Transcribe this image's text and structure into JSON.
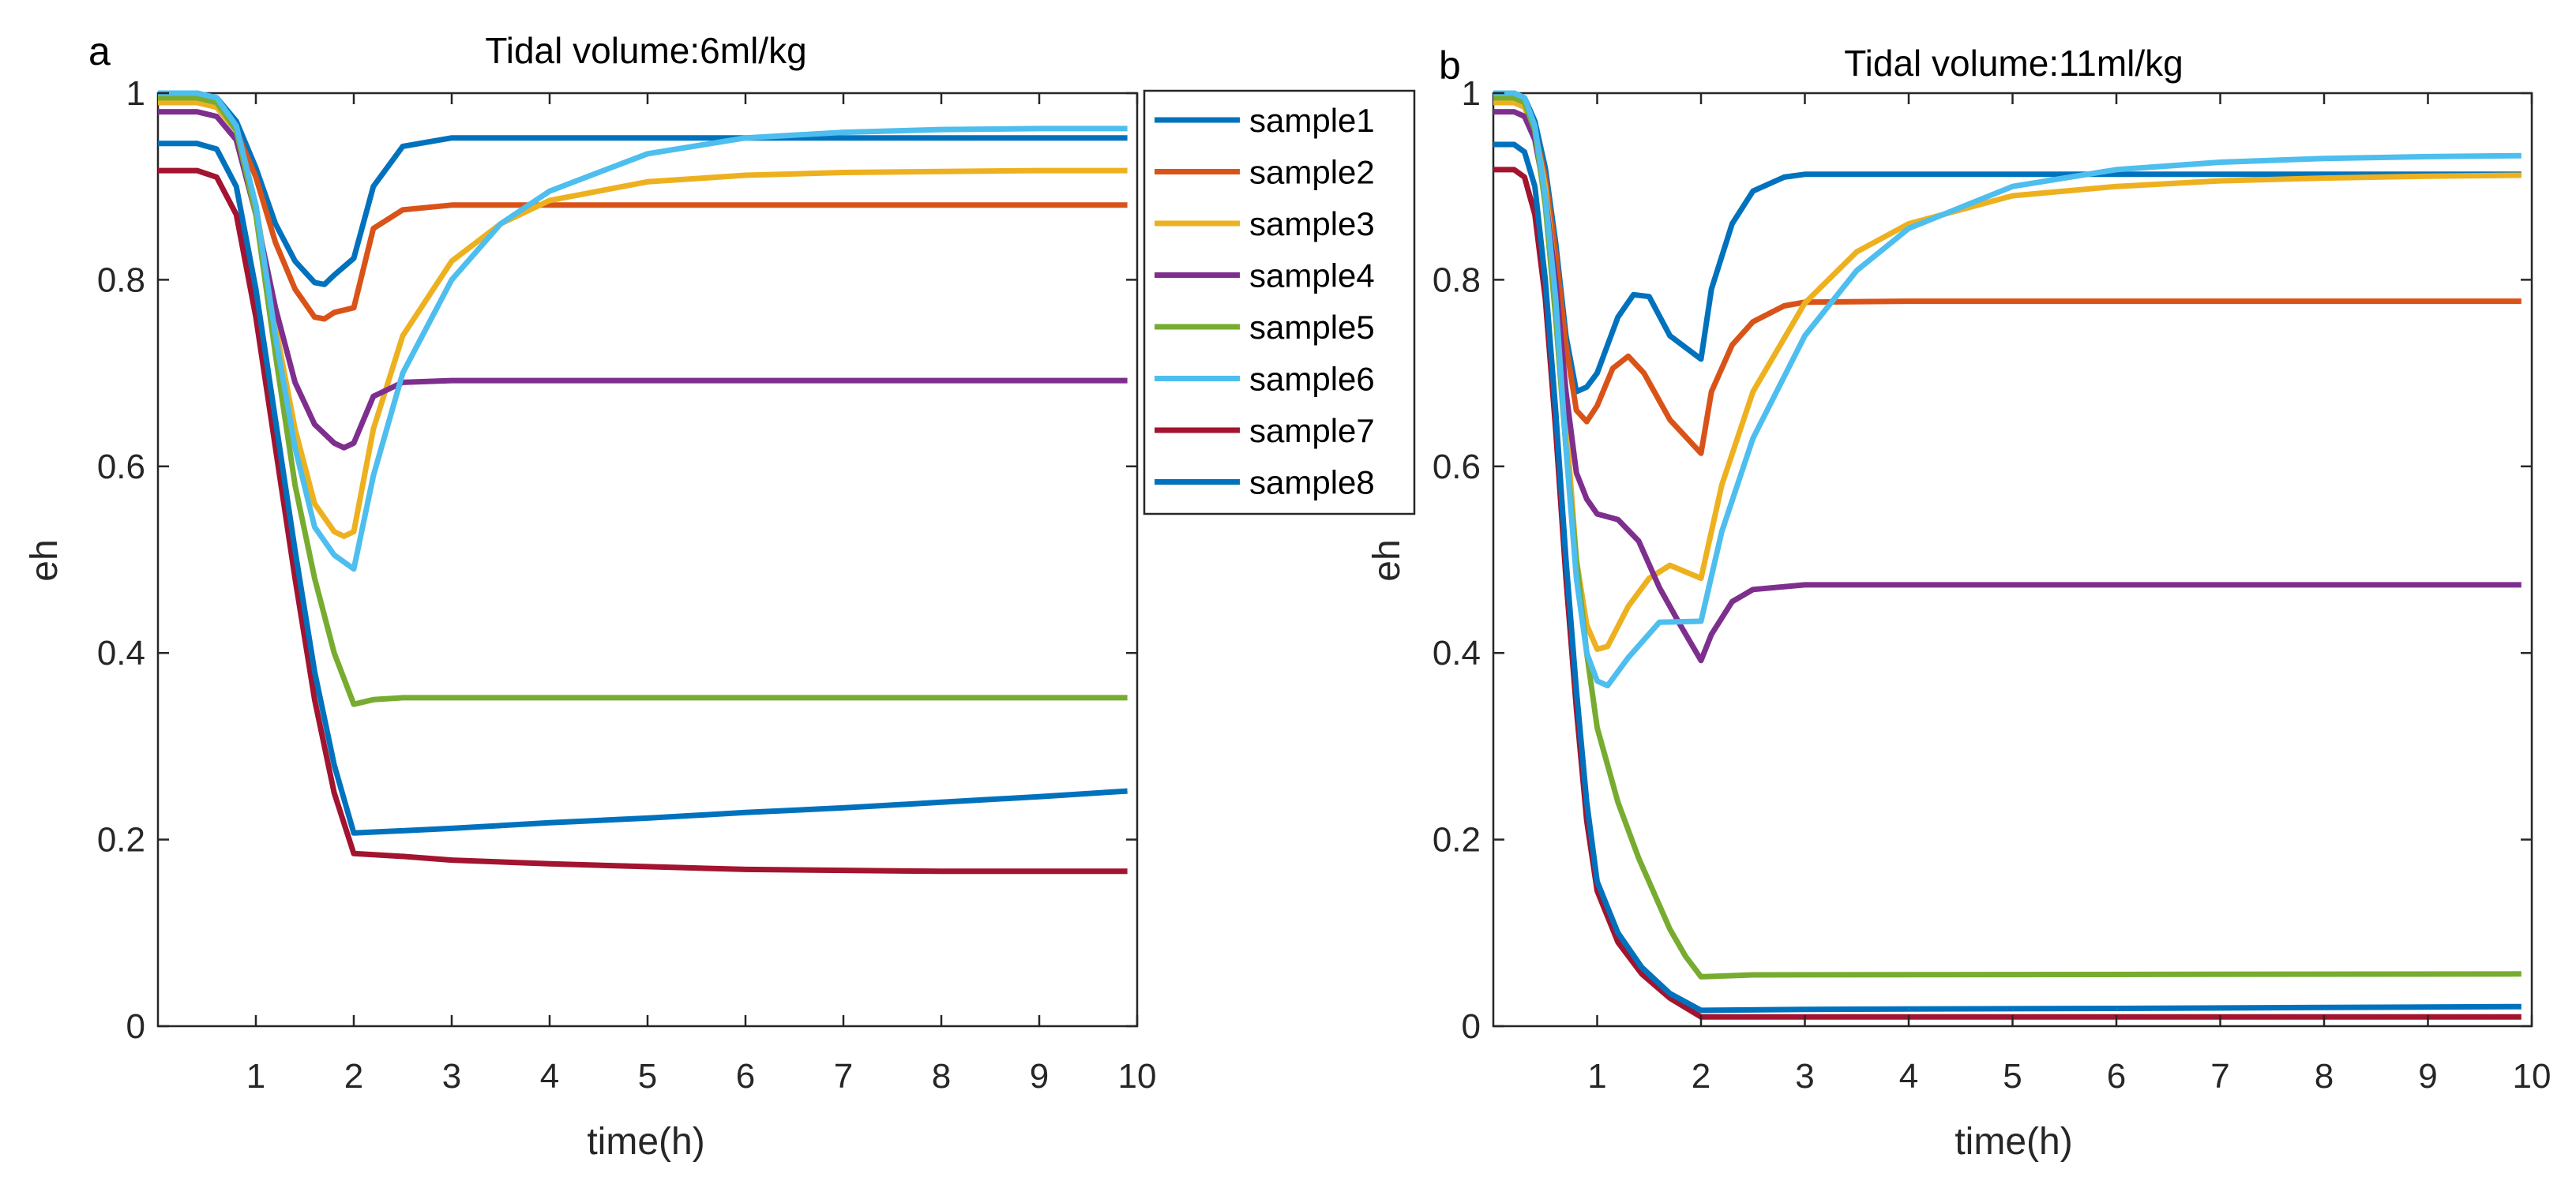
{
  "chart_data": [
    {
      "type": "line",
      "panel_label": "a",
      "title": "Tidal volume:6ml/kg",
      "xlabel": "time(h)",
      "ylabel": "eh",
      "xlim": [
        0,
        10
      ],
      "ylim": [
        0,
        1
      ],
      "xticks": [
        "1",
        "2",
        "3",
        "4",
        "5",
        "6",
        "7",
        "8",
        "9",
        "10"
      ],
      "yticks": [
        "0",
        "0.2",
        "0.4",
        "0.6",
        "0.8",
        "1"
      ],
      "grid": false,
      "series": [
        {
          "name": "sample1",
          "color": "#0072BD",
          "x": [
            0,
            0.4,
            0.6,
            0.8,
            1,
            1.2,
            1.4,
            1.6,
            1.7,
            1.8,
            2,
            2.2,
            2.5,
            3,
            4,
            6,
            8,
            9.9
          ],
          "y": [
            1,
            1,
            0.995,
            0.97,
            0.92,
            0.86,
            0.82,
            0.797,
            0.795,
            0.805,
            0.823,
            0.9,
            0.943,
            0.952,
            0.952,
            0.952,
            0.952,
            0.952
          ]
        },
        {
          "name": "sample2",
          "color": "#D95319",
          "x": [
            0,
            0.4,
            0.6,
            0.8,
            1,
            1.2,
            1.4,
            1.6,
            1.7,
            1.8,
            2,
            2.2,
            2.5,
            3,
            4,
            6,
            8,
            9.9
          ],
          "y": [
            0.99,
            0.99,
            0.985,
            0.96,
            0.91,
            0.84,
            0.79,
            0.76,
            0.758,
            0.765,
            0.77,
            0.855,
            0.875,
            0.88,
            0.88,
            0.88,
            0.88,
            0.88
          ]
        },
        {
          "name": "sample3",
          "color": "#EDB120",
          "x": [
            0,
            0.4,
            0.6,
            0.8,
            1,
            1.2,
            1.4,
            1.6,
            1.8,
            1.9,
            2,
            2.2,
            2.5,
            3,
            3.5,
            4,
            5,
            6,
            7,
            8,
            9,
            9.9
          ],
          "y": [
            0.99,
            0.99,
            0.985,
            0.96,
            0.88,
            0.75,
            0.64,
            0.56,
            0.53,
            0.525,
            0.53,
            0.64,
            0.74,
            0.82,
            0.86,
            0.885,
            0.905,
            0.912,
            0.915,
            0.916,
            0.917,
            0.917
          ]
        },
        {
          "name": "sample4",
          "color": "#7E2F8E",
          "x": [
            0,
            0.4,
            0.6,
            0.8,
            1,
            1.2,
            1.4,
            1.6,
            1.8,
            1.9,
            2,
            2.2,
            2.5,
            3,
            5,
            9.9
          ],
          "y": [
            0.98,
            0.98,
            0.975,
            0.95,
            0.87,
            0.77,
            0.69,
            0.645,
            0.625,
            0.62,
            0.625,
            0.675,
            0.69,
            0.692,
            0.692,
            0.692
          ]
        },
        {
          "name": "sample5",
          "color": "#77AC30",
          "x": [
            0,
            0.4,
            0.6,
            0.8,
            1,
            1.2,
            1.4,
            1.6,
            1.8,
            2,
            2.2,
            2.5,
            3,
            9.9
          ],
          "y": [
            0.995,
            0.995,
            0.99,
            0.96,
            0.87,
            0.72,
            0.58,
            0.48,
            0.4,
            0.345,
            0.35,
            0.352,
            0.352,
            0.352
          ]
        },
        {
          "name": "sample6",
          "color": "#4DBEEE",
          "x": [
            0,
            0.4,
            0.6,
            0.8,
            1,
            1.2,
            1.4,
            1.6,
            1.8,
            2,
            2.2,
            2.5,
            3,
            3.5,
            4,
            5,
            6,
            7,
            8,
            9,
            9.9
          ],
          "y": [
            1,
            1,
            0.995,
            0.965,
            0.88,
            0.74,
            0.62,
            0.535,
            0.505,
            0.49,
            0.59,
            0.7,
            0.8,
            0.86,
            0.895,
            0.935,
            0.952,
            0.958,
            0.961,
            0.962,
            0.962
          ]
        },
        {
          "name": "sample7",
          "color": "#A2142F",
          "x": [
            0,
            0.4,
            0.6,
            0.8,
            1,
            1.2,
            1.4,
            1.6,
            1.8,
            2,
            2.5,
            3,
            4,
            5,
            6,
            7,
            8,
            9,
            9.9
          ],
          "y": [
            0.917,
            0.917,
            0.91,
            0.87,
            0.76,
            0.62,
            0.48,
            0.35,
            0.25,
            0.185,
            0.182,
            0.178,
            0.174,
            0.171,
            0.168,
            0.167,
            0.166,
            0.166,
            0.166
          ]
        },
        {
          "name": "sample8",
          "color": "#0072BD",
          "x": [
            0,
            0.4,
            0.6,
            0.8,
            1,
            1.2,
            1.4,
            1.6,
            1.8,
            2,
            3,
            4,
            5,
            6,
            7,
            8,
            9,
            9.9
          ],
          "y": [
            0.946,
            0.946,
            0.94,
            0.9,
            0.79,
            0.65,
            0.51,
            0.38,
            0.28,
            0.207,
            0.212,
            0.218,
            0.223,
            0.229,
            0.234,
            0.24,
            0.246,
            0.252
          ]
        }
      ]
    },
    {
      "type": "line",
      "panel_label": "b",
      "title": "Tidal volume:11ml/kg",
      "xlabel": "time(h)",
      "ylabel": "eh",
      "xlim": [
        0,
        10
      ],
      "ylim": [
        0,
        1
      ],
      "xticks": [
        "1",
        "2",
        "3",
        "4",
        "5",
        "6",
        "7",
        "8",
        "9",
        "10"
      ],
      "yticks": [
        "0",
        "0.2",
        "0.4",
        "0.6",
        "0.8",
        "1"
      ],
      "grid": false,
      "series": [
        {
          "name": "sample1",
          "color": "#0072BD",
          "x": [
            0,
            0.2,
            0.3,
            0.4,
            0.5,
            0.6,
            0.7,
            0.8,
            0.9,
            1.0,
            1.2,
            1.35,
            1.5,
            1.7,
            2.0,
            2.1,
            2.3,
            2.5,
            2.8,
            3,
            4,
            6,
            8,
            9.9
          ],
          "y": [
            1,
            1,
            0.995,
            0.97,
            0.92,
            0.84,
            0.74,
            0.68,
            0.685,
            0.7,
            0.76,
            0.784,
            0.782,
            0.74,
            0.715,
            0.79,
            0.86,
            0.895,
            0.91,
            0.913,
            0.913,
            0.913,
            0.913,
            0.913
          ]
        },
        {
          "name": "sample2",
          "color": "#D95319",
          "x": [
            0,
            0.2,
            0.3,
            0.4,
            0.5,
            0.6,
            0.7,
            0.8,
            0.9,
            1.0,
            1.15,
            1.3,
            1.45,
            1.7,
            2.0,
            2.1,
            2.3,
            2.5,
            2.8,
            3,
            4,
            6,
            9.9
          ],
          "y": [
            0.99,
            0.99,
            0.985,
            0.96,
            0.91,
            0.83,
            0.73,
            0.66,
            0.648,
            0.665,
            0.705,
            0.718,
            0.7,
            0.65,
            0.614,
            0.68,
            0.73,
            0.755,
            0.772,
            0.776,
            0.777,
            0.777,
            0.777
          ]
        },
        {
          "name": "sample3",
          "color": "#EDB120",
          "x": [
            0,
            0.2,
            0.3,
            0.4,
            0.5,
            0.6,
            0.7,
            0.8,
            0.9,
            1.0,
            1.1,
            1.3,
            1.5,
            1.7,
            2.0,
            2.2,
            2.5,
            3,
            3.5,
            4,
            5,
            6,
            7,
            8,
            9,
            9.9
          ],
          "y": [
            0.99,
            0.99,
            0.985,
            0.96,
            0.9,
            0.8,
            0.65,
            0.5,
            0.43,
            0.404,
            0.407,
            0.45,
            0.48,
            0.494,
            0.48,
            0.58,
            0.68,
            0.775,
            0.83,
            0.86,
            0.89,
            0.9,
            0.906,
            0.909,
            0.911,
            0.912
          ]
        },
        {
          "name": "sample4",
          "color": "#7E2F8E",
          "x": [
            0,
            0.2,
            0.3,
            0.4,
            0.5,
            0.6,
            0.7,
            0.8,
            0.9,
            1.0,
            1.2,
            1.4,
            1.6,
            1.8,
            2.0,
            2.1,
            2.3,
            2.5,
            3,
            5,
            9.9
          ],
          "y": [
            0.98,
            0.98,
            0.975,
            0.95,
            0.89,
            0.8,
            0.68,
            0.593,
            0.565,
            0.549,
            0.543,
            0.52,
            0.47,
            0.43,
            0.392,
            0.42,
            0.455,
            0.468,
            0.473,
            0.473,
            0.473
          ]
        },
        {
          "name": "sample5",
          "color": "#77AC30",
          "x": [
            0,
            0.2,
            0.3,
            0.4,
            0.5,
            0.6,
            0.7,
            0.8,
            0.9,
            1.0,
            1.2,
            1.4,
            1.7,
            1.85,
            2.0,
            2.5,
            9.9
          ],
          "y": [
            0.995,
            0.995,
            0.99,
            0.96,
            0.88,
            0.76,
            0.62,
            0.5,
            0.4,
            0.32,
            0.24,
            0.18,
            0.104,
            0.075,
            0.053,
            0.055,
            0.056
          ]
        },
        {
          "name": "sample6",
          "color": "#4DBEEE",
          "x": [
            0,
            0.2,
            0.3,
            0.4,
            0.5,
            0.6,
            0.7,
            0.8,
            0.9,
            1.0,
            1.1,
            1.3,
            1.6,
            2.0,
            2.2,
            2.5,
            3,
            3.5,
            4,
            5,
            6,
            7,
            8,
            9,
            9.9
          ],
          "y": [
            1,
            1,
            0.995,
            0.965,
            0.89,
            0.78,
            0.62,
            0.48,
            0.4,
            0.37,
            0.365,
            0.395,
            0.433,
            0.434,
            0.53,
            0.63,
            0.74,
            0.81,
            0.855,
            0.9,
            0.918,
            0.926,
            0.93,
            0.932,
            0.933
          ]
        },
        {
          "name": "sample7",
          "color": "#A2142F",
          "x": [
            0,
            0.2,
            0.3,
            0.4,
            0.5,
            0.6,
            0.7,
            0.8,
            0.9,
            1.0,
            1.2,
            1.43,
            1.7,
            2.0,
            3,
            9.9
          ],
          "y": [
            0.918,
            0.918,
            0.91,
            0.87,
            0.78,
            0.64,
            0.48,
            0.34,
            0.22,
            0.145,
            0.09,
            0.056,
            0.03,
            0.01,
            0.01,
            0.01
          ]
        },
        {
          "name": "sample8",
          "color": "#0072BD",
          "x": [
            0,
            0.2,
            0.3,
            0.4,
            0.5,
            0.6,
            0.7,
            0.8,
            0.9,
            1.0,
            1.2,
            1.43,
            1.7,
            2.0,
            3,
            6,
            9.9
          ],
          "y": [
            0.945,
            0.945,
            0.937,
            0.9,
            0.8,
            0.66,
            0.5,
            0.36,
            0.24,
            0.155,
            0.1,
            0.063,
            0.035,
            0.017,
            0.018,
            0.019,
            0.021
          ]
        }
      ]
    }
  ],
  "legend": {
    "placement": "right of panel a",
    "entries": [
      "sample1",
      "sample2",
      "sample3",
      "sample4",
      "sample5",
      "sample6",
      "sample7",
      "sample8"
    ]
  }
}
